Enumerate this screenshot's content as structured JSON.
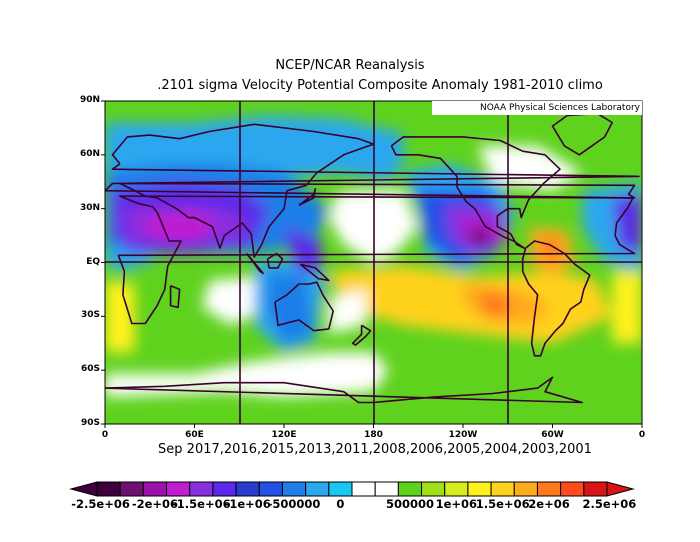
{
  "chart_data": {
    "type": "heatmap",
    "title": "NCEP/NCAR Reanalysis",
    "subtitle": ".2101 sigma Velocity Potential  Composite Anomaly 1981-2010 climo",
    "credit": "NOAA Physical Sciences Laboratory",
    "caption": "Sep 2017,2016,2015,2013,2011,2008,2006,2005,2004,2003,2001",
    "xlim": [
      0,
      360
    ],
    "ylim": [
      -90,
      90
    ],
    "x_ticks": [
      "0",
      "60E",
      "120E",
      "180",
      "120W",
      "60W",
      "0"
    ],
    "y_ticks": [
      "90N",
      "60N",
      "30N",
      "EQ",
      "30S",
      "60S",
      "90S"
    ],
    "colorbar": {
      "labels": [
        "-2.5e+06",
        "-2e+06",
        "-1.5e+06",
        "-1e+06",
        "-500000",
        "0",
        "500000",
        "1e+06",
        "1.5e+06",
        "2e+06",
        "2.5e+06"
      ],
      "colors": [
        "#3d003d",
        "#6e0f72",
        "#9a13a8",
        "#c01dd0",
        "#8a2fe0",
        "#5a2ae8",
        "#2a3ccf",
        "#2450e6",
        "#1f7ee8",
        "#2aa7ee",
        "#18c8f0",
        "#ffffff",
        "#ffffff",
        "#5fd21e",
        "#9fe01a",
        "#d7ec1e",
        "#fff11e",
        "#ffd21e",
        "#ffab1e",
        "#ff7a1e",
        "#ff4a1e",
        "#d81414"
      ],
      "range": [
        -2500000,
        2500000
      ],
      "extend": "both"
    },
    "features": [
      {
        "name": "negative anomaly",
        "lon": 20,
        "lat": 15,
        "value": -1500000
      },
      {
        "name": "negative anomaly",
        "lon": 60,
        "lat": 25,
        "value": -1500000
      },
      {
        "name": "negative anomaly",
        "lon": 100,
        "lat": 20,
        "value": -1200000
      },
      {
        "name": "negative anomaly",
        "lon": 132,
        "lat": 5,
        "value": -1200000
      },
      {
        "name": "negative anomaly",
        "lon": 250,
        "lat": 15,
        "value": -2500000
      },
      {
        "name": "negative anomaly",
        "lon": 345,
        "lat": 20,
        "value": -1200000
      },
      {
        "name": "positive anomaly",
        "lon": 262,
        "lat": -22,
        "value": 2000000
      },
      {
        "name": "positive anomaly",
        "lon": 300,
        "lat": 10,
        "value": 2000000
      },
      {
        "name": "positive anomaly",
        "lon": 285,
        "lat": -18,
        "value": 1500000
      }
    ]
  }
}
